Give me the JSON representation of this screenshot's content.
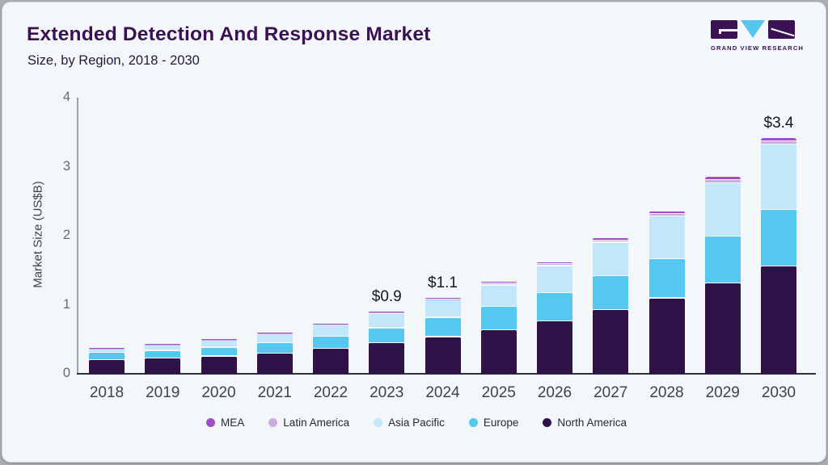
{
  "frame": {
    "outer_background": "#a9adb3",
    "card_background": "#f4f7f9"
  },
  "logo": {
    "name": "grand-view-research-logo",
    "text": "GRAND VIEW RESEARCH",
    "dark_color": "#3a1253",
    "accent_color": "#56c5f0"
  },
  "chart_data": {
    "type": "bar",
    "stacked": true,
    "title": "Extended Detection And Response Market",
    "subtitle": "Size, by Region, 2018 - 2030",
    "ylabel": "Market Size (US$B)",
    "ylim": [
      0,
      4
    ],
    "yticks": [
      0,
      1,
      2,
      3,
      4
    ],
    "grid": false,
    "categories": [
      "2018",
      "2019",
      "2020",
      "2021",
      "2022",
      "2023",
      "2024",
      "2025",
      "2026",
      "2027",
      "2028",
      "2029",
      "2030"
    ],
    "series": [
      {
        "name": "North America",
        "color": "#2f1348",
        "values": [
          0.2,
          0.22,
          0.25,
          0.29,
          0.36,
          0.44,
          0.53,
          0.63,
          0.76,
          0.92,
          1.09,
          1.31,
          1.55
        ]
      },
      {
        "name": "Europe",
        "color": "#55c8f0",
        "values": [
          0.1,
          0.11,
          0.13,
          0.15,
          0.18,
          0.22,
          0.28,
          0.34,
          0.41,
          0.49,
          0.57,
          0.68,
          0.82
        ]
      },
      {
        "name": "Asia Pacific",
        "color": "#c1e7f8",
        "values": [
          0.06,
          0.09,
          0.1,
          0.14,
          0.17,
          0.21,
          0.25,
          0.31,
          0.39,
          0.49,
          0.62,
          0.77,
          0.95
        ]
      },
      {
        "name": "Latin America",
        "color": "#cdabe0",
        "values": [
          0.005,
          0.005,
          0.01,
          0.01,
          0.01,
          0.015,
          0.02,
          0.025,
          0.025,
          0.03,
          0.035,
          0.045,
          0.05
        ]
      },
      {
        "name": "MEA",
        "color": "#a14ec6",
        "values": [
          0.005,
          0.005,
          0.01,
          0.01,
          0.01,
          0.015,
          0.02,
          0.025,
          0.025,
          0.03,
          0.035,
          0.045,
          0.05
        ]
      }
    ],
    "totals": [
      0.37,
      0.43,
      0.5,
      0.6,
      0.73,
      0.9,
      1.1,
      1.33,
      1.61,
      1.96,
      2.35,
      2.86,
      3.42
    ],
    "bar_labels": {
      "2023": "$0.9",
      "2024": "$1.1",
      "2030": "$3.4"
    },
    "legend_position": "bottom",
    "legend": [
      {
        "label": "MEA",
        "color": "#a14ec6"
      },
      {
        "label": "Latin America",
        "color": "#cdabe0"
      },
      {
        "label": "Asia Pacific",
        "color": "#c1e7f8"
      },
      {
        "label": "Europe",
        "color": "#55c8f0"
      },
      {
        "label": "North America",
        "color": "#2f1348"
      }
    ]
  }
}
